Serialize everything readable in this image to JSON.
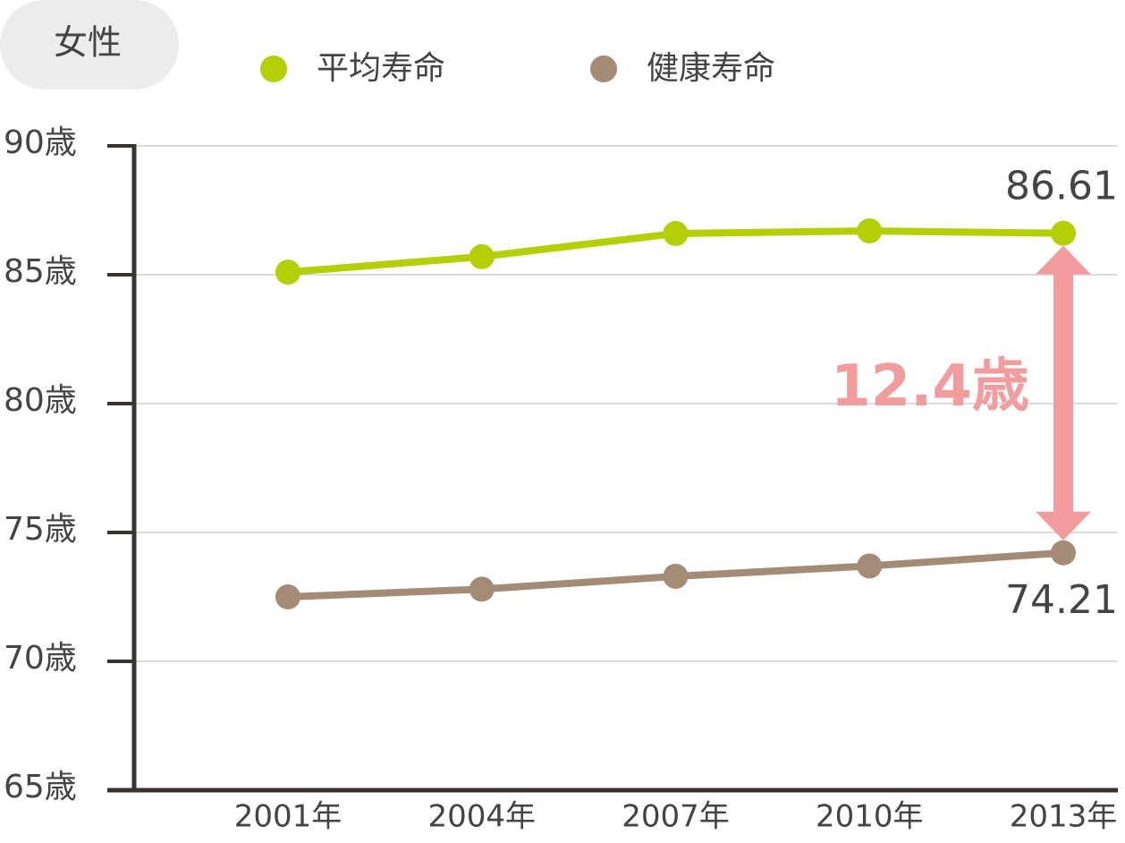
{
  "chart_data": {
    "type": "line",
    "badge": "女性",
    "categories": [
      "2001年",
      "2004年",
      "2007年",
      "2010年",
      "2013年"
    ],
    "series": [
      {
        "name": "平均寿命",
        "color": "#b5cf06",
        "values": [
          85.1,
          85.7,
          86.6,
          86.7,
          86.61
        ]
      },
      {
        "name": "健康寿命",
        "color": "#a38b76",
        "values": [
          72.5,
          72.8,
          73.3,
          73.7,
          74.21
        ]
      }
    ],
    "ylim": [
      65,
      90
    ],
    "yticks": [
      {
        "value": 65,
        "label": "65歳"
      },
      {
        "value": 70,
        "label": "70歳"
      },
      {
        "value": 75,
        "label": "75歳"
      },
      {
        "value": 80,
        "label": "80歳"
      },
      {
        "value": 85,
        "label": "85歳"
      },
      {
        "value": 90,
        "label": "90歳"
      }
    ],
    "grid": true,
    "annotation": "12.4歳",
    "annotation_color": "#f29c9f"
  }
}
